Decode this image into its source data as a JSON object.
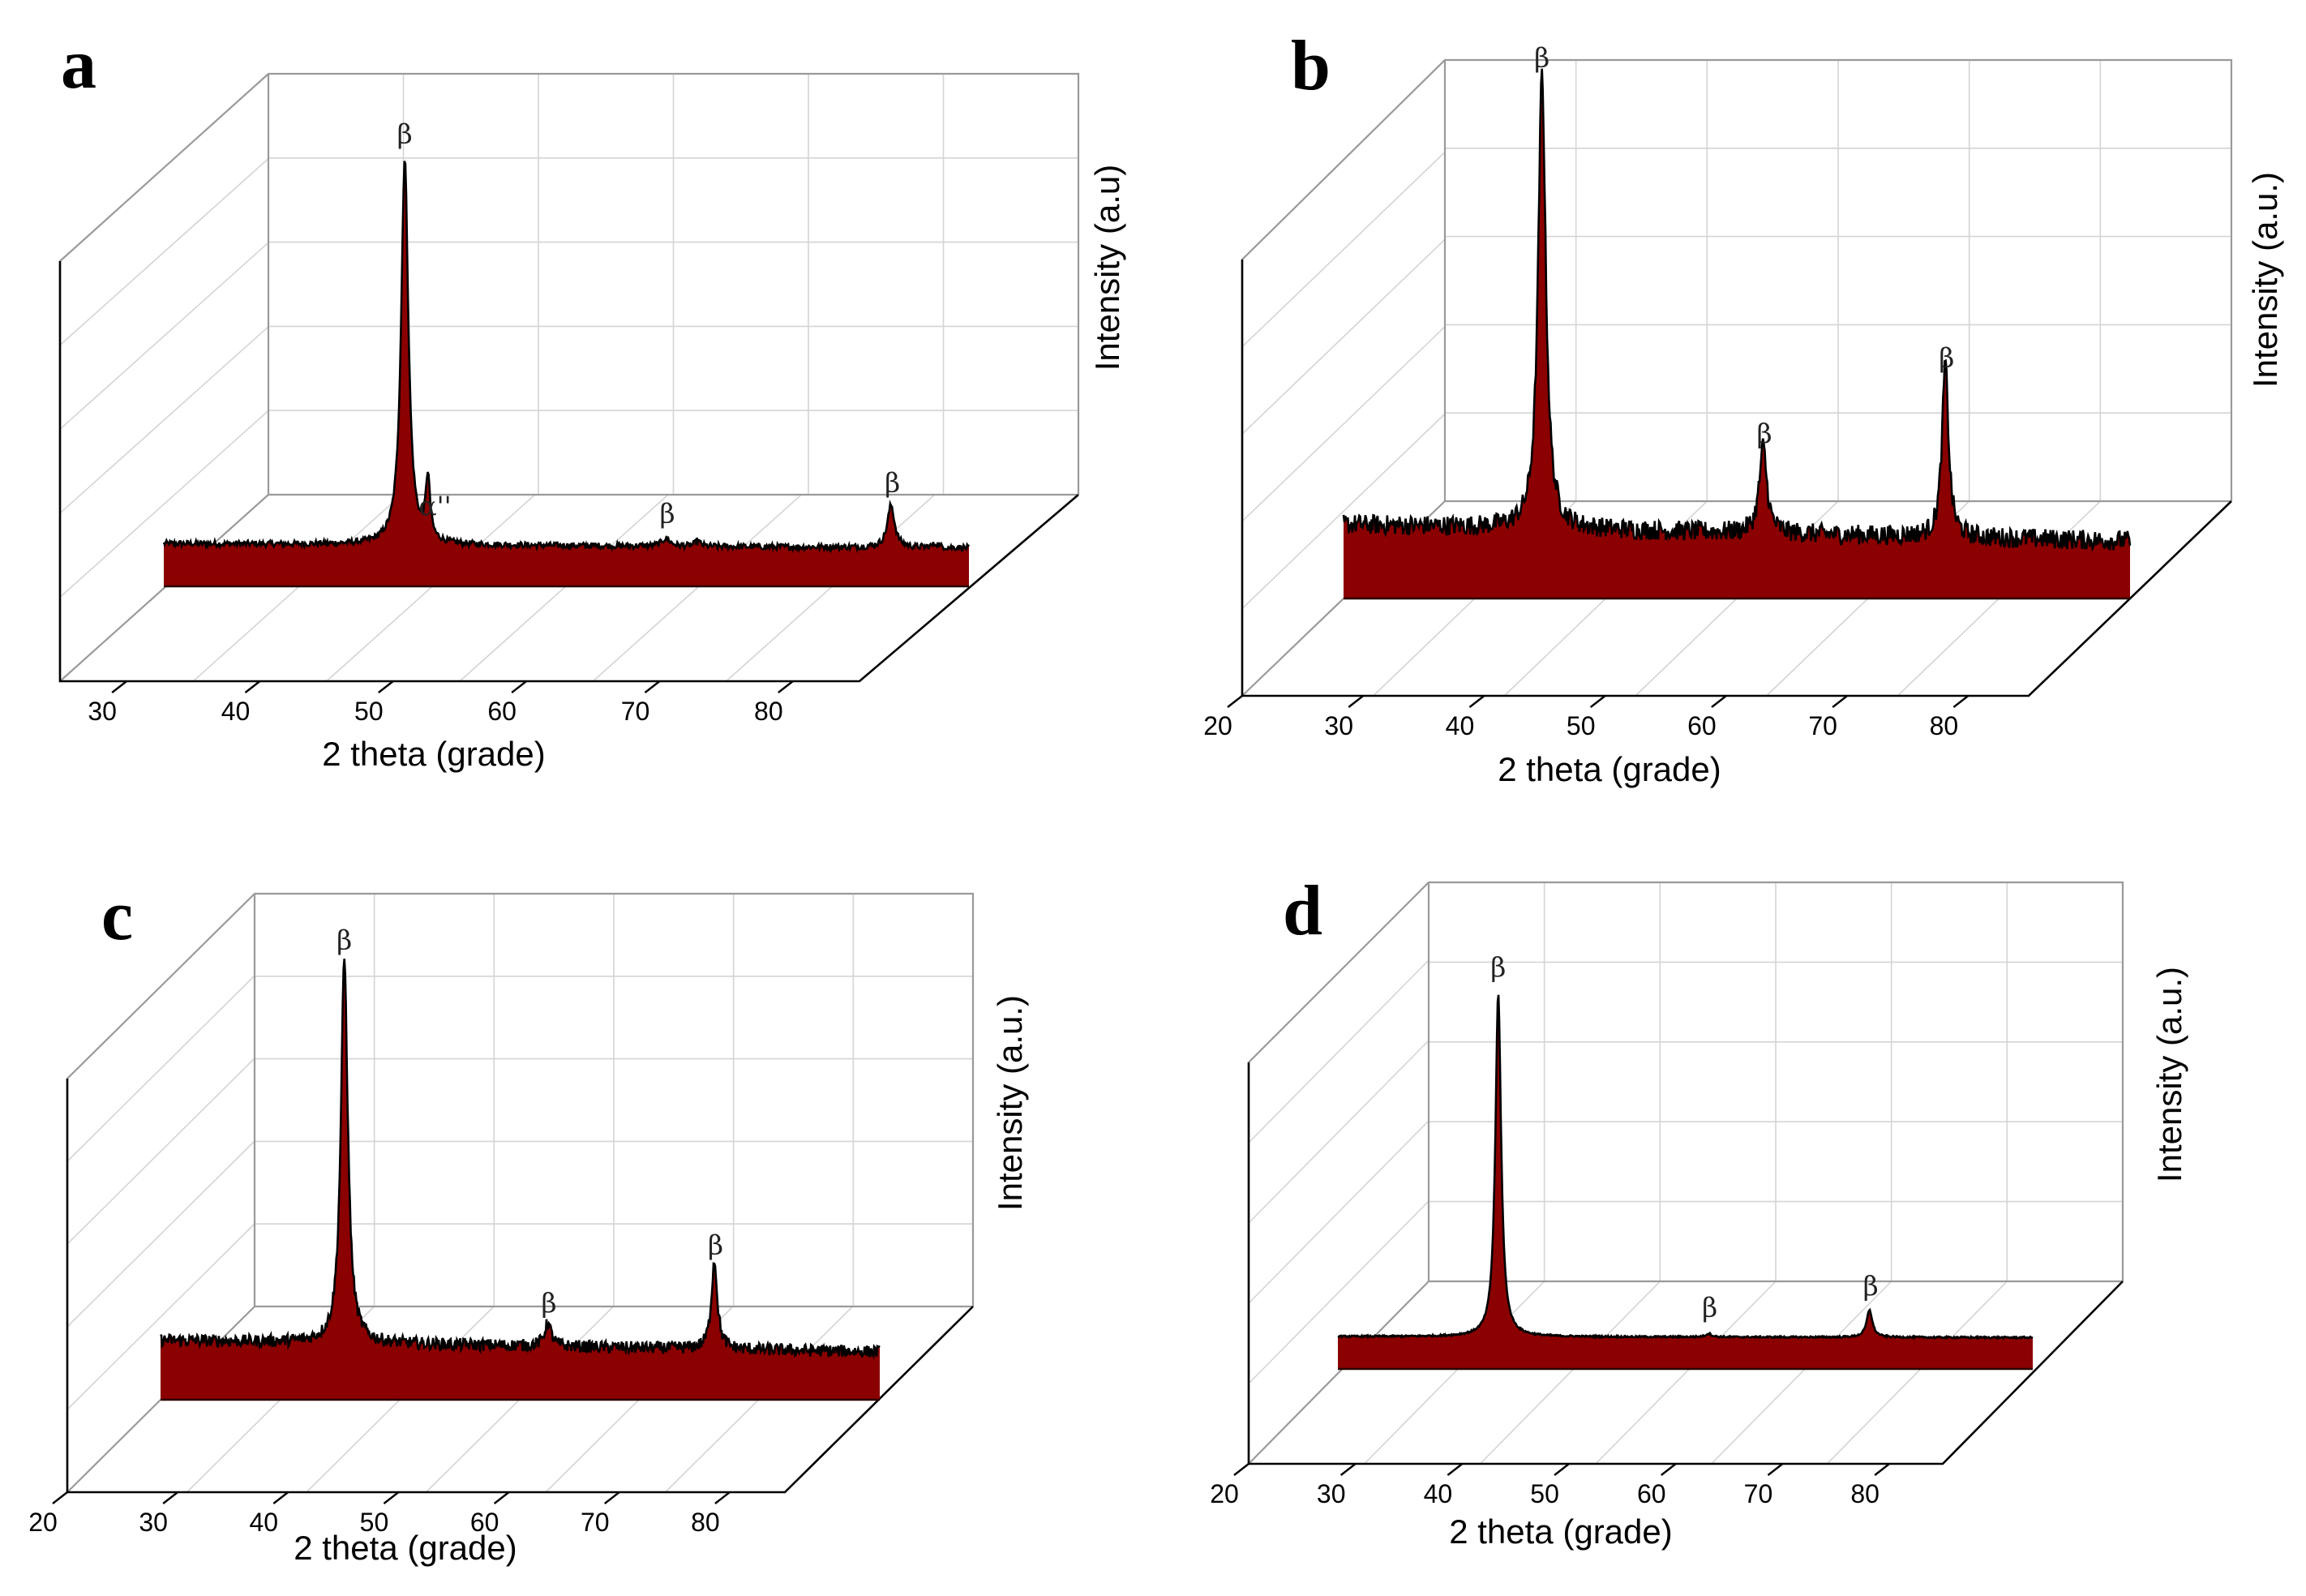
{
  "chart_data": [
    {
      "panel_label": "a",
      "type": "area",
      "view": "3d",
      "xlabel": "2 theta (grade)",
      "ylabel": "Intensity (a.u)",
      "xlim": [
        25,
        85
      ],
      "xticks": [
        30,
        40,
        50,
        60,
        70,
        80
      ],
      "x_tick_labels": [
        "30",
        "40",
        "50",
        "60",
        "70",
        "80"
      ],
      "ylim": [
        0,
        100
      ],
      "fill_color": "#8b0000",
      "line_color": "#000000",
      "baseline": 4.5,
      "noise": 0.8,
      "slope": 0.04,
      "series_peaks": [
        {
          "x": 44.7,
          "height": 100,
          "width": 0.3
        },
        {
          "x": 46.3,
          "height": 16,
          "width": 0.18
        },
        {
          "x": 62.8,
          "height": 2,
          "width": 0.35
        },
        {
          "x": 65.0,
          "height": 1.5,
          "width": 0.2
        },
        {
          "x": 78.4,
          "height": 11,
          "width": 0.3
        },
        {
          "x": 81.5,
          "height": 1,
          "width": 0.25
        }
      ],
      "annotations": [
        {
          "text": "β",
          "x": 44.7
        },
        {
          "text": "α''",
          "x": 46.8
        },
        {
          "text": "β",
          "x": 62.9
        },
        {
          "text": "β",
          "x": 78.5
        }
      ]
    },
    {
      "panel_label": "b",
      "type": "area",
      "view": "3d",
      "xlabel": "2 theta (grade)",
      "ylabel": "Intensity (a.u.)",
      "xlim": [
        20,
        85
      ],
      "xticks": [
        20,
        30,
        40,
        50,
        60,
        70,
        80
      ],
      "x_tick_labels": [
        "20",
        "30",
        "40",
        "50",
        "60",
        "70",
        "80"
      ],
      "ylim": [
        0,
        100
      ],
      "fill_color": "#8b0000",
      "line_color": "#000000",
      "baseline": 8,
      "noise": 2.2,
      "slope": 0.12,
      "series_peaks": [
        {
          "x": 38.5,
          "height": 100,
          "width": 0.35
        },
        {
          "x": 55.5,
          "height": 19,
          "width": 0.35
        },
        {
          "x": 69.5,
          "height": 38,
          "width": 0.3
        }
      ],
      "annotations": [
        {
          "text": "β",
          "x": 38.5
        },
        {
          "text": "β",
          "x": 55.6
        },
        {
          "text": "β",
          "x": 69.6
        }
      ]
    },
    {
      "panel_label": "c",
      "type": "area",
      "view": "3d",
      "xlabel": "2 theta (grade)",
      "ylabel": "Intensity (a.u.)",
      "xlim": [
        20,
        85
      ],
      "xticks": [
        20,
        30,
        40,
        50,
        60,
        70,
        80
      ],
      "x_tick_labels": [
        "20",
        "30",
        "40",
        "50",
        "60",
        "70",
        "80"
      ],
      "ylim": [
        0,
        100
      ],
      "fill_color": "#8b0000",
      "line_color": "#000000",
      "baseline": 7,
      "noise": 1.6,
      "slope": 0.1,
      "series_peaks": [
        {
          "x": 38.7,
          "height": 100,
          "width": 0.35
        },
        {
          "x": 55.8,
          "height": 6,
          "width": 0.35
        },
        {
          "x": 69.8,
          "height": 23,
          "width": 0.3
        }
      ],
      "annotations": [
        {
          "text": "β",
          "x": 38.7
        },
        {
          "text": "β",
          "x": 55.9
        },
        {
          "text": "β",
          "x": 69.9
        }
      ]
    },
    {
      "panel_label": "d",
      "type": "area",
      "view": "3d",
      "xlabel": "2 theta (grade)",
      "ylabel": "Intensity (a.u.)",
      "xlim": [
        20,
        85
      ],
      "xticks": [
        20,
        30,
        40,
        50,
        60,
        70,
        80
      ],
      "x_tick_labels": [
        "20",
        "30",
        "40",
        "50",
        "60",
        "70",
        "80"
      ],
      "ylim": [
        0,
        100
      ],
      "fill_color": "#8b0000",
      "line_color": "#000000",
      "baseline": 3,
      "noise": 0.25,
      "slope": 0.01,
      "series_peaks": [
        {
          "x": 37.2,
          "height": 100,
          "width": 0.3
        },
        {
          "x": 55.5,
          "height": 1,
          "width": 0.3
        },
        {
          "x": 69.5,
          "height": 8,
          "width": 0.3
        }
      ],
      "annotations": [
        {
          "text": "β",
          "x": 37.2
        },
        {
          "text": "β",
          "x": 55.6
        },
        {
          "text": "β",
          "x": 69.6
        }
      ]
    }
  ]
}
